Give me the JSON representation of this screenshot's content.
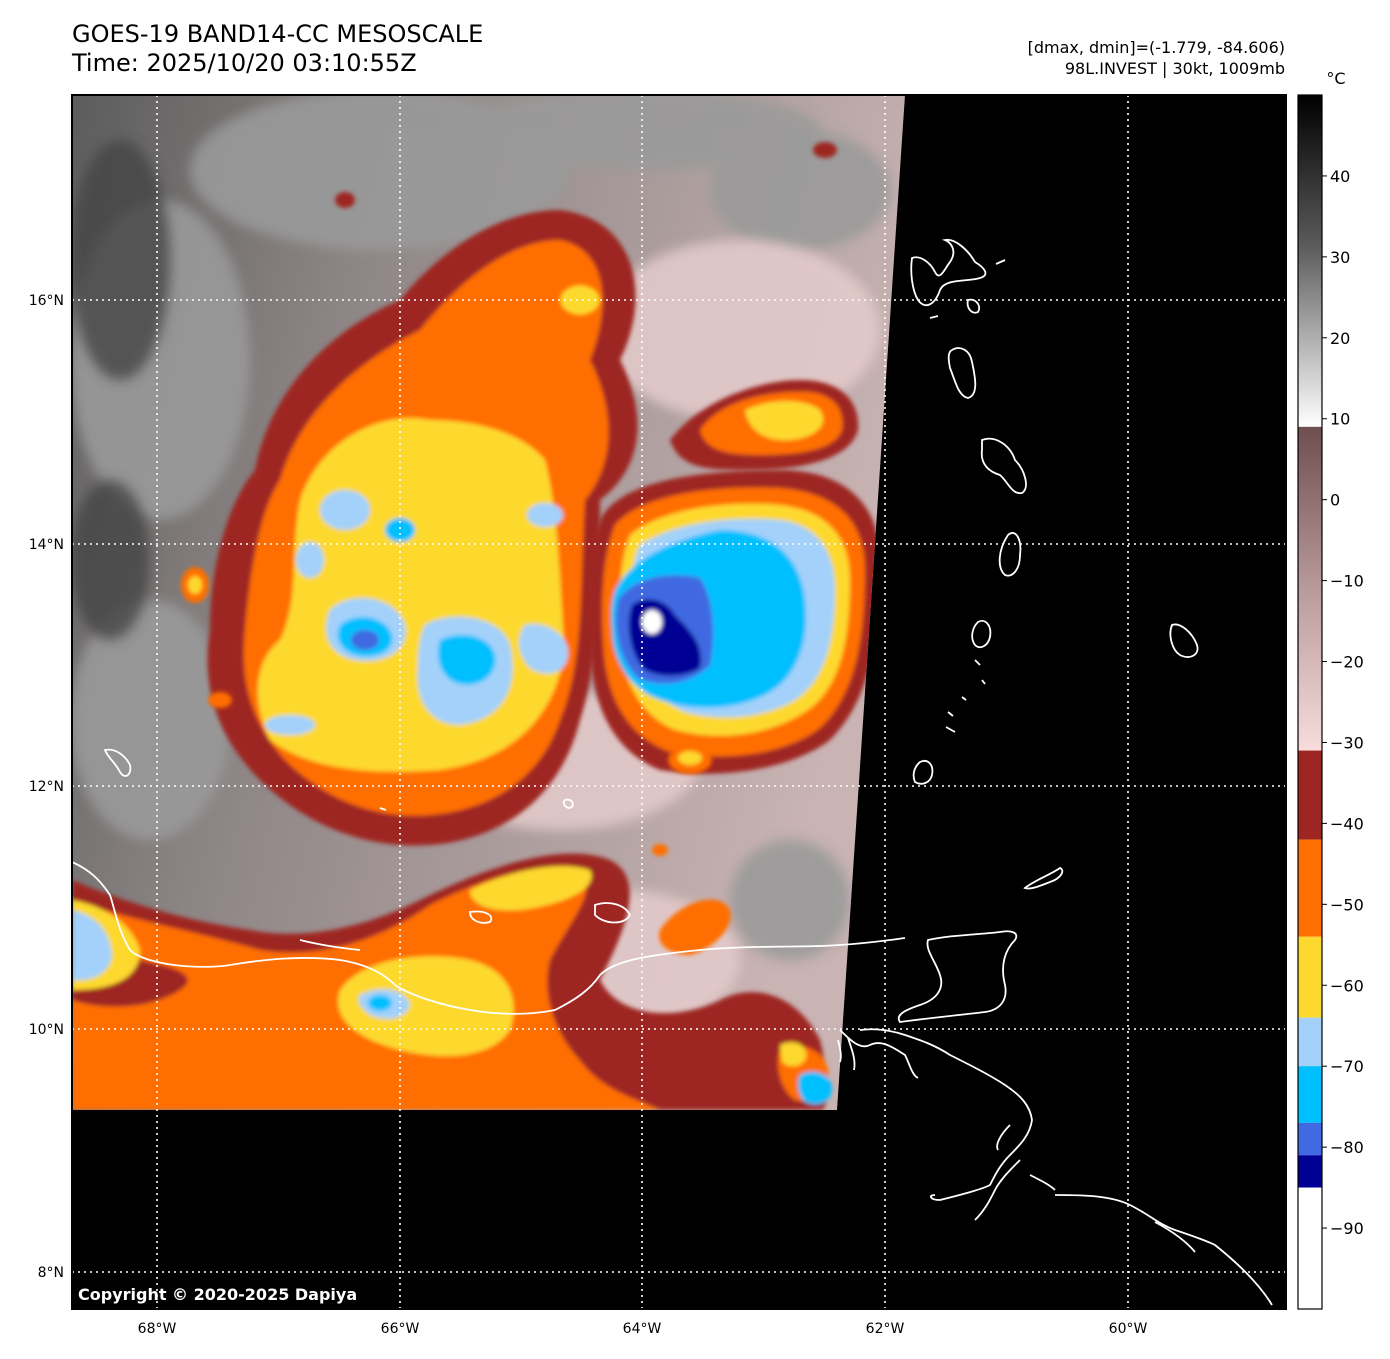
{
  "title": {
    "line1": "GOES-19 BAND14-CC MESOSCALE",
    "line2": "Time: 2025/10/20 03:10:55Z"
  },
  "info": {
    "line1": "[dmax, dmin]=(-1.779, -84.606)",
    "line2": "98L.INVEST | 30kt, 1009mb"
  },
  "copyright": "Copyright © 2020-2025 Dapiya",
  "lon_labels": [
    "68°W",
    "66°W",
    "64°W",
    "62°W",
    "60°W"
  ],
  "lat_labels": [
    "16°N",
    "14°N",
    "12°N",
    "10°N",
    "8°N"
  ],
  "colorbar": {
    "unit": "°C",
    "ticks": [
      "40",
      "30",
      "20",
      "10",
      "0",
      "−10",
      "−20",
      "−30",
      "−40",
      "−50",
      "−60",
      "−70",
      "−80",
      "−90"
    ],
    "range": [
      -100,
      50
    ],
    "segments": [
      {
        "from": 50,
        "to": 9,
        "style": "gray"
      },
      {
        "from": 9,
        "to": -31,
        "style": "brown-pink"
      },
      {
        "from": -31,
        "to": -42,
        "color": "#9e2622"
      },
      {
        "from": -42,
        "to": -54,
        "color": "#ff6e00"
      },
      {
        "from": -54,
        "to": -64,
        "color": "#fdd92e"
      },
      {
        "from": -64,
        "to": -70,
        "color": "#a3d1fa"
      },
      {
        "from": -70,
        "to": -77,
        "color": "#00bfff"
      },
      {
        "from": -77,
        "to": -81,
        "color": "#4169e1"
      },
      {
        "from": -81,
        "to": -85,
        "color": "#000095"
      },
      {
        "from": -85,
        "to": -100,
        "color": "#ffffff"
      }
    ]
  },
  "palette": {
    "background": "#000000",
    "cloud_gray": "#8e8e8e",
    "cloud_warm": "#a88a8a",
    "cloud_pink": "#e2c6c6",
    "coastline": "#ffffff",
    "grid": "#ffffff"
  },
  "storm": {
    "name": "98L.INVEST",
    "center_lon": -63.9,
    "center_lat": 13.2
  }
}
